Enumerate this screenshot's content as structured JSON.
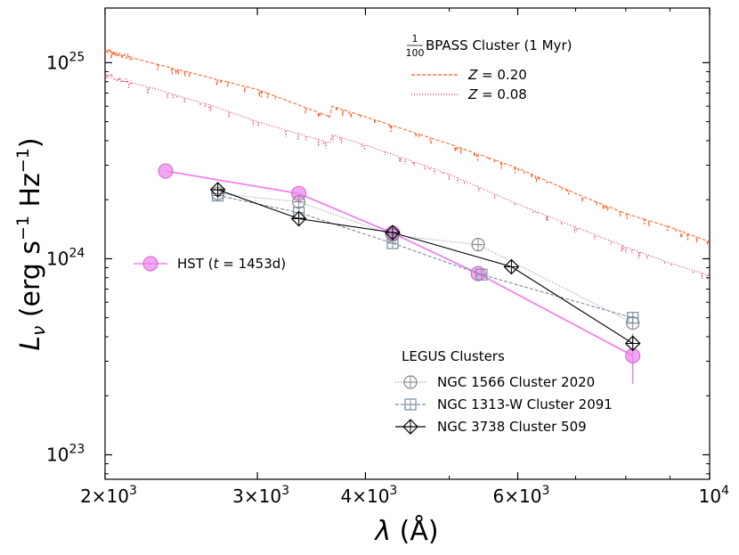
{
  "chart_data": {
    "type": "line",
    "xscale": "log",
    "yscale": "log",
    "xlim": [
      2000,
      10000
    ],
    "ylim": [
      7.5e+22,
      1.9e+25
    ],
    "xlabel_prefix": "λ (Å)",
    "ylabel": "L_ν (erg s⁻¹ Hz⁻¹)",
    "x_ticks": [
      {
        "value": 2000,
        "mant": "2×10",
        "exp": "3"
      },
      {
        "value": 3000,
        "mant": "3×10",
        "exp": "3"
      },
      {
        "value": 4000,
        "mant": "4×10",
        "exp": "3"
      },
      {
        "value": 6000,
        "mant": "6×10",
        "exp": "3"
      },
      {
        "value": 10000,
        "mant": "10",
        "exp": "4"
      }
    ],
    "y_ticks": [
      {
        "value": 1e+23,
        "mant": "10",
        "exp": "23"
      },
      {
        "value": 1e+24,
        "mant": "10",
        "exp": "24"
      },
      {
        "value": 1e+25,
        "mant": "10",
        "exp": "25"
      }
    ],
    "bpass_legend_title": "BPASS Cluster (1 Myr)",
    "bpass_scale": {
      "num": "1",
      "den": "100"
    },
    "bpass_series": [
      {
        "name": "Z = 0.20",
        "z_value": "0.20",
        "color": "#ff5a1f",
        "style": "dashed",
        "points": [
          [
            2000,
            1.15e+25
          ],
          [
            2300,
            9.8e+24
          ],
          [
            2700,
            8.2e+24
          ],
          [
            3000,
            7.3e+24
          ],
          [
            3640,
            5.3e+24
          ],
          [
            3660,
            6e+24
          ],
          [
            4000,
            5.3e+24
          ],
          [
            5000,
            3.85e+24
          ],
          [
            6000,
            2.9e+24
          ],
          [
            7000,
            2.15e+24
          ],
          [
            8000,
            1.7e+24
          ],
          [
            9000,
            1.45e+24
          ],
          [
            10000,
            1.22e+24
          ]
        ]
      },
      {
        "name": "Z = 0.08",
        "z_value": "0.08",
        "color": "#d81b60",
        "style": "dotted",
        "points": [
          [
            2000,
            8.6e+24
          ],
          [
            2300,
            7.3e+24
          ],
          [
            2700,
            5.9e+24
          ],
          [
            3000,
            5e+24
          ],
          [
            3640,
            3.9e+24
          ],
          [
            3660,
            4.3e+24
          ],
          [
            4000,
            3.8e+24
          ],
          [
            5000,
            2.7e+24
          ],
          [
            6000,
            1.9e+24
          ],
          [
            7000,
            1.45e+24
          ],
          [
            8000,
            1.15e+24
          ],
          [
            9000,
            9.5e+23
          ],
          [
            10000,
            8.2e+23
          ]
        ]
      }
    ],
    "hst": {
      "name": "HST",
      "t_label": "t",
      "t_value": "1453d",
      "color": "#ee82ee",
      "points": [
        [
          2350,
          2.8e+24
        ],
        [
          3350,
          2.15e+24
        ],
        [
          4300,
          1.35e+24
        ],
        [
          5400,
          8.4e+23
        ],
        [
          8150,
          3.2e+23
        ]
      ]
    },
    "legus_title": "LEGUS Clusters",
    "legus_series": [
      {
        "name": "NGC 1566 Cluster 2020",
        "marker": "circle",
        "color": "#888888",
        "style": "dotted",
        "points": [
          [
            2700,
            2.15e+24
          ],
          [
            3350,
            1.95e+24
          ],
          [
            4300,
            1.32e+24
          ],
          [
            5400,
            1.18e+24
          ],
          [
            8150,
            4.7e+23
          ]
        ]
      },
      {
        "name": "NGC 1313-W Cluster 2091",
        "marker": "square",
        "color": "#7a8ca3",
        "style": "dashed",
        "points": [
          [
            2700,
            2.1e+24
          ],
          [
            3350,
            1.72e+24
          ],
          [
            4300,
            1.2e+24
          ],
          [
            5450,
            8.3e+23
          ],
          [
            8150,
            5e+23
          ]
        ]
      },
      {
        "name": "NGC 3738 Cluster 509",
        "marker": "diamond",
        "color": "#000000",
        "style": "solid",
        "points": [
          [
            2700,
            2.25e+24
          ],
          [
            3350,
            1.6e+24
          ],
          [
            4300,
            1.36e+24
          ],
          [
            5900,
            9.1e+23
          ],
          [
            8150,
            3.7e+23
          ]
        ]
      }
    ]
  }
}
